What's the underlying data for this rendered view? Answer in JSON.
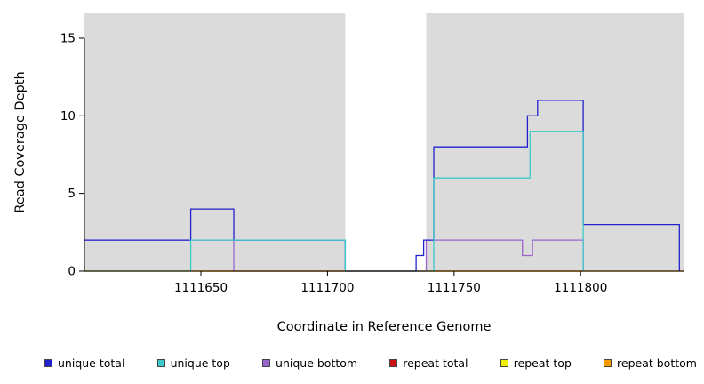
{
  "chart_data": {
    "type": "line",
    "title": "",
    "xlabel": "Coordinate in Reference Genome",
    "ylabel": "Read Coverage Depth",
    "xlim": [
      1111604,
      1111841
    ],
    "ylim": [
      0,
      16.6
    ],
    "x_ticks": [
      "1111650",
      "1111700",
      "1111750",
      "1111800"
    ],
    "x_tick_values": [
      1111650,
      1111700,
      1111750,
      1111800
    ],
    "y_ticks": [
      "0",
      "5",
      "10",
      "15"
    ],
    "y_tick_values": [
      0,
      5,
      10,
      15
    ],
    "grid": false,
    "legend_position": "bottom",
    "band_color": "#dbdbdb",
    "background_bands": [
      {
        "x0": 1111604,
        "x1": 1111707
      },
      {
        "x0": 1111739,
        "x1": 1111841
      }
    ],
    "draw_order": [
      "repeat total",
      "repeat top",
      "unique bottom",
      "repeat bottom",
      "unique total",
      "unique top"
    ],
    "series": [
      {
        "name": "unique total",
        "color": "#2222cc",
        "points": [
          [
            1111604,
            2
          ],
          [
            1111646,
            2
          ],
          [
            1111646,
            4
          ],
          [
            1111663,
            4
          ],
          [
            1111663,
            2
          ],
          [
            1111707,
            2
          ],
          [
            1111707,
            0
          ],
          [
            1111735,
            0
          ],
          [
            1111735,
            1
          ],
          [
            1111738,
            1
          ],
          [
            1111738,
            2
          ],
          [
            1111742,
            2
          ],
          [
            1111742,
            8
          ],
          [
            1111779,
            8
          ],
          [
            1111779,
            10
          ],
          [
            1111783,
            10
          ],
          [
            1111783,
            11
          ],
          [
            1111801,
            11
          ],
          [
            1111801,
            3
          ],
          [
            1111839,
            3
          ],
          [
            1111839,
            0
          ]
        ]
      },
      {
        "name": "unique top",
        "color": "#3cc9c9",
        "points": [
          [
            1111604,
            0
          ],
          [
            1111646,
            0
          ],
          [
            1111646,
            2
          ],
          [
            1111707,
            2
          ],
          [
            1111707,
            0
          ],
          [
            1111742,
            0
          ],
          [
            1111742,
            6
          ],
          [
            1111780,
            6
          ],
          [
            1111780,
            9
          ],
          [
            1111801,
            9
          ],
          [
            1111801,
            0
          ]
        ]
      },
      {
        "name": "unique bottom",
        "color": "#9966cc",
        "points": [
          [
            1111604,
            2
          ],
          [
            1111663,
            2
          ],
          [
            1111663,
            0
          ],
          [
            1111739,
            0
          ],
          [
            1111739,
            2
          ],
          [
            1111777,
            2
          ],
          [
            1111777,
            1
          ],
          [
            1111781,
            1
          ],
          [
            1111781,
            2
          ],
          [
            1111801,
            2
          ],
          [
            1111801,
            0
          ]
        ]
      },
      {
        "name": "repeat total",
        "color": "#cc1111",
        "points": [
          [
            1111604,
            0
          ],
          [
            1111841,
            0
          ]
        ]
      },
      {
        "name": "repeat top",
        "color": "#eeee00",
        "points": [
          [
            1111604,
            0
          ],
          [
            1111841,
            0
          ]
        ]
      },
      {
        "name": "repeat bottom",
        "color": "#f59b00",
        "points": [
          [
            1111648,
            0
          ],
          [
            1111801,
            0
          ]
        ]
      }
    ]
  }
}
